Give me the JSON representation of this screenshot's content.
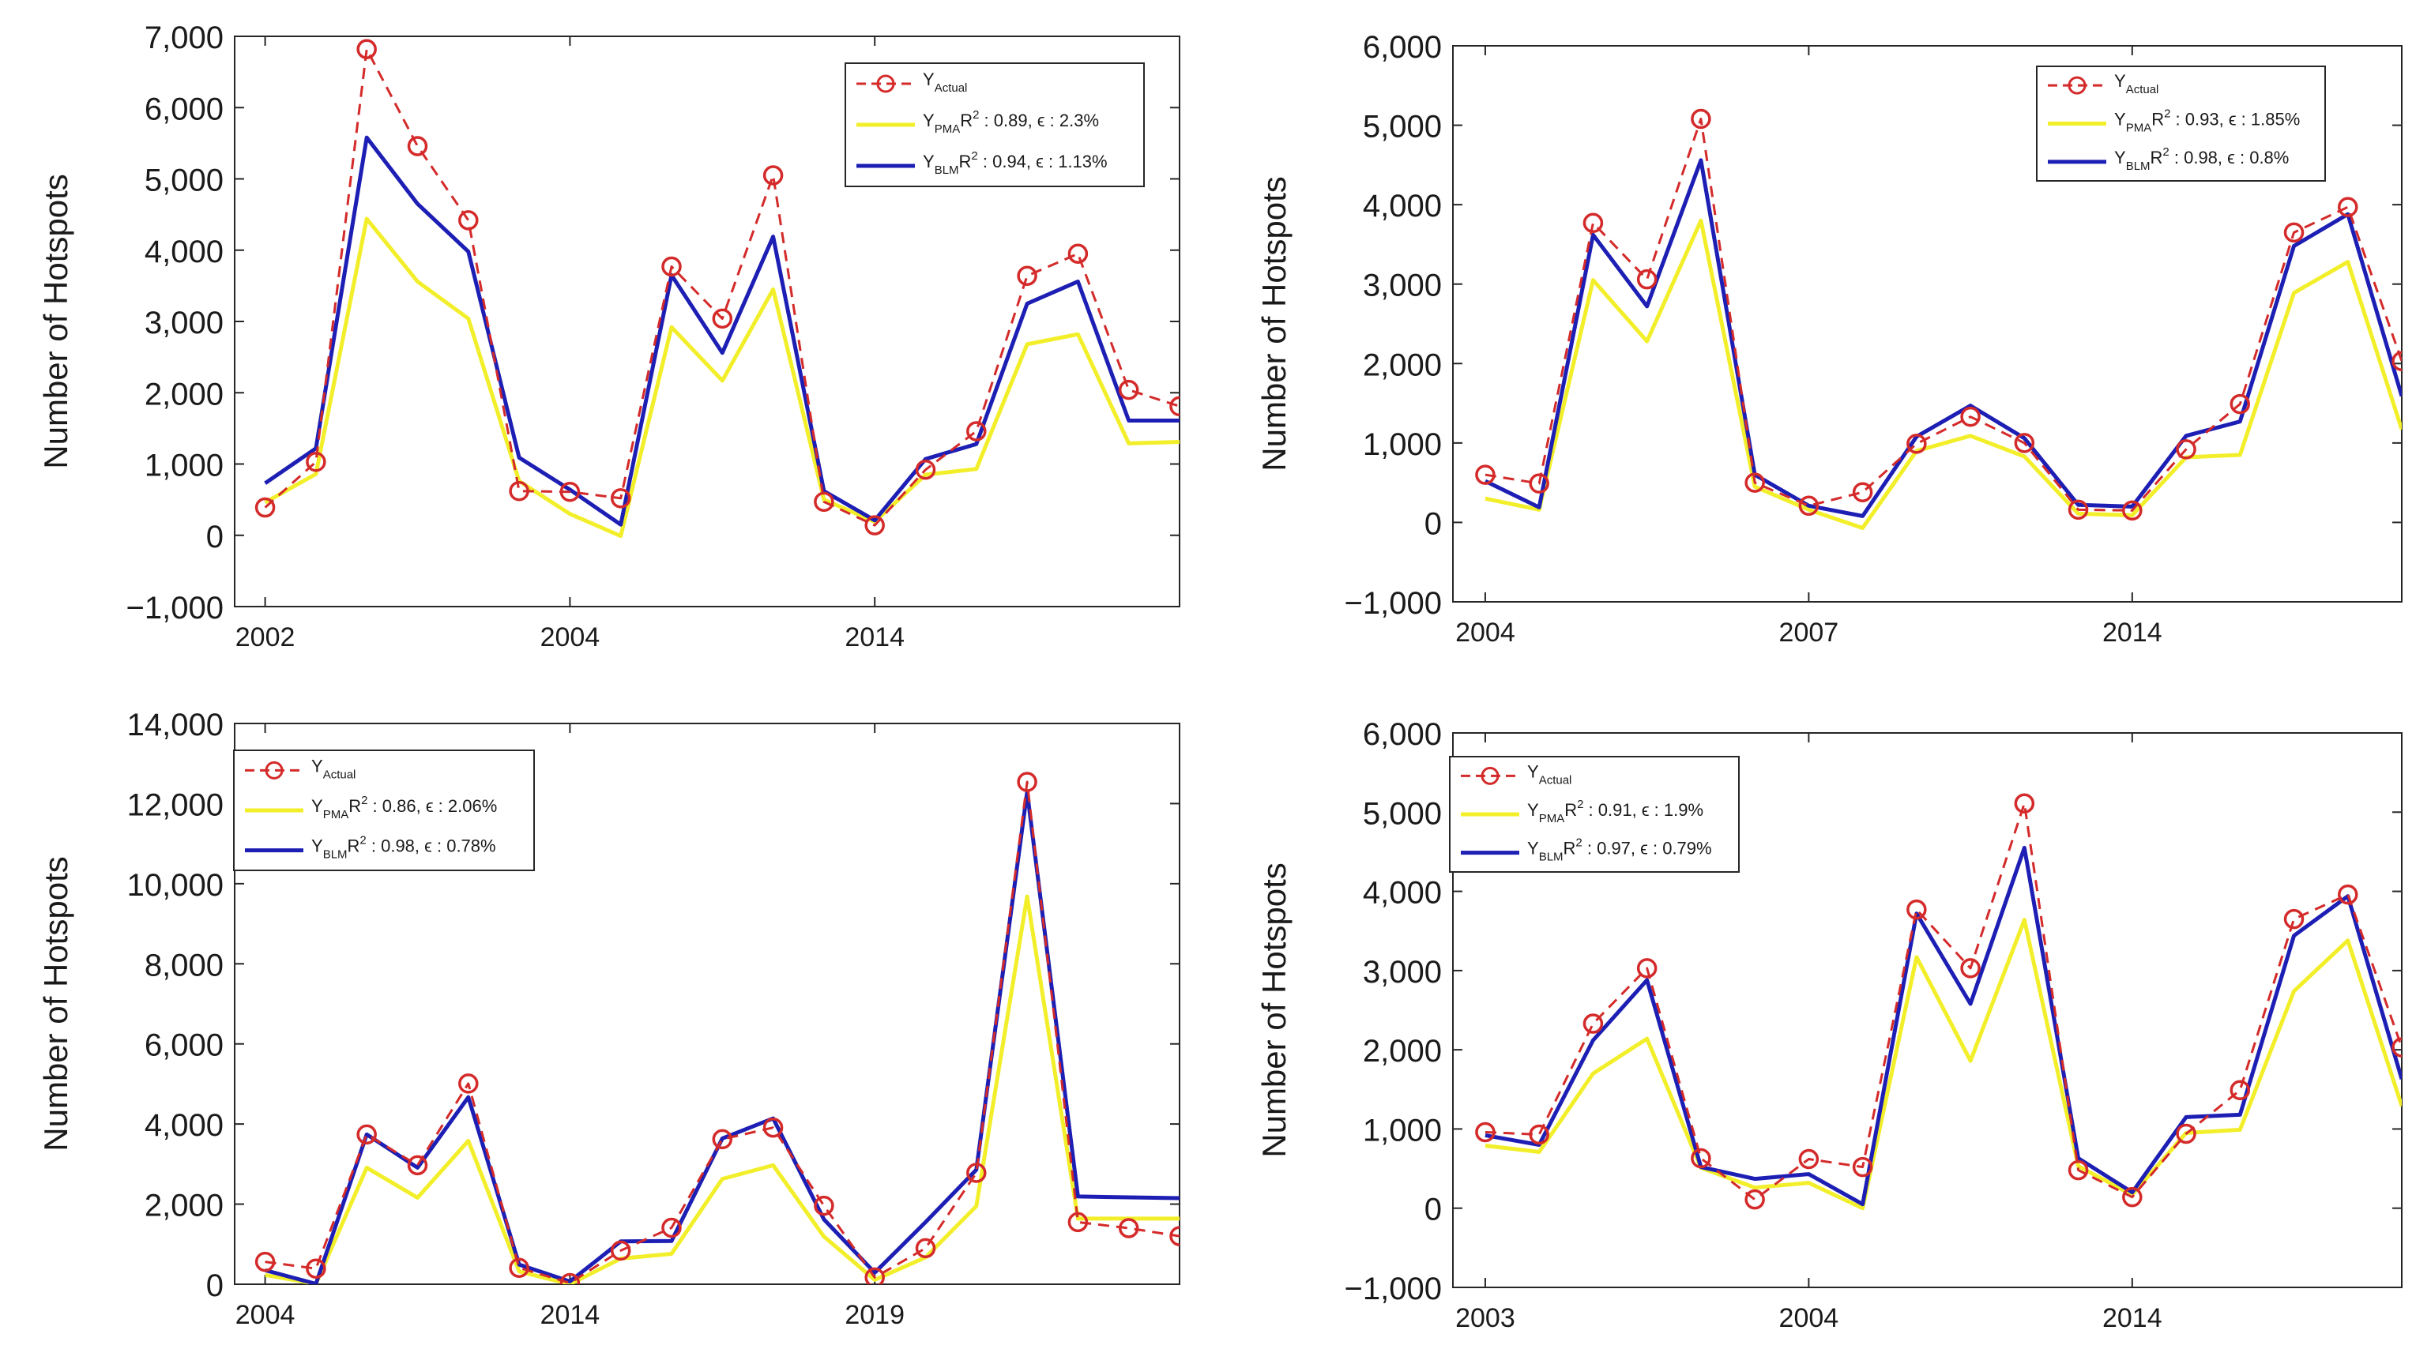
{
  "figure": {
    "background": "#ffffff"
  },
  "chart_data": [
    {
      "type": "line",
      "ylabel": "Number of Hotspots",
      "xlabel": "",
      "ylim": [
        -1000,
        7000
      ],
      "yticks": [
        -1000,
        0,
        1000,
        2000,
        3000,
        4000,
        5000,
        6000,
        7000
      ],
      "ytick_labels": [
        "−1,000",
        "0",
        "1,000",
        "2,000",
        "3,000",
        "4,000",
        "5,000",
        "6,000",
        "7,000"
      ],
      "x": [
        0,
        1,
        2,
        3,
        4,
        5,
        6,
        7,
        8,
        9,
        10,
        11,
        12,
        13,
        14,
        15,
        16,
        17,
        18
      ],
      "xlim": [
        -0.6,
        18
      ],
      "xticks": [
        0,
        6,
        12
      ],
      "xtick_labels": [
        "2002",
        "2004",
        "2014"
      ],
      "legend_position": "top-right",
      "series": [
        {
          "name": "Actual",
          "label_main": "Y",
          "label_sub": "Actual",
          "stats": "",
          "color": "#d42a2a",
          "style": "dashed-circle",
          "values": [
            390,
            1030,
            6820,
            5460,
            4420,
            620,
            610,
            520,
            3770,
            3040,
            5050,
            470,
            140,
            920,
            1460,
            3640,
            3950,
            2040,
            1810
          ]
        },
        {
          "name": "PMA",
          "label_main": "Y",
          "label_sub": "PMA",
          "stats_prefix": "R",
          "stats_sup": "2",
          "stats": " : 0.89, ϵ : 2.3%",
          "color": "#f2ef2a",
          "style": "solid",
          "values": [
            460,
            860,
            4440,
            3560,
            3040,
            760,
            300,
            -10,
            2920,
            2170,
            3450,
            500,
            190,
            850,
            930,
            2680,
            2820,
            1290,
            1310
          ]
        },
        {
          "name": "BLM",
          "label_main": "Y",
          "label_sub": "BLM",
          "stats_prefix": "R",
          "stats_sup": "2",
          "stats": " : 0.94, ϵ : 1.13%",
          "color": "#1d1fb4",
          "style": "solid",
          "values": [
            730,
            1220,
            5580,
            4650,
            3980,
            1090,
            640,
            150,
            3650,
            2560,
            4190,
            620,
            210,
            1070,
            1280,
            3250,
            3560,
            1610,
            1610
          ]
        }
      ]
    },
    {
      "type": "line",
      "ylabel": "Number of Hotspots",
      "xlabel": "",
      "ylim": [
        -1000,
        6000
      ],
      "yticks": [
        -1000,
        0,
        1000,
        2000,
        3000,
        4000,
        5000,
        6000
      ],
      "ytick_labels": [
        "−1,000",
        "0",
        "1,000",
        "2,000",
        "3,000",
        "4,000",
        "5,000",
        "6,000"
      ],
      "x": [
        0,
        1,
        2,
        3,
        4,
        5,
        6,
        7,
        8,
        9,
        10,
        11,
        12,
        13,
        14,
        15,
        16,
        17
      ],
      "xlim": [
        -0.6,
        17
      ],
      "xticks": [
        0,
        6,
        12
      ],
      "xtick_labels": [
        "2004",
        "2007",
        "2014"
      ],
      "legend_position": "top-right",
      "series": [
        {
          "name": "Actual",
          "label_main": "Y",
          "label_sub": "Actual",
          "stats": "",
          "color": "#d42a2a",
          "style": "dashed-circle",
          "values": [
            600,
            490,
            3770,
            3060,
            5080,
            500,
            210,
            380,
            990,
            1330,
            1000,
            160,
            150,
            920,
            1490,
            3650,
            3970,
            2030
          ]
        },
        {
          "name": "PMA",
          "label_main": "Y",
          "label_sub": "PMA",
          "stats_prefix": "R",
          "stats_sup": "2",
          "stats": " : 0.93, ϵ : 1.85%",
          "color": "#f2ef2a",
          "style": "solid",
          "values": [
            300,
            160,
            3050,
            2280,
            3800,
            450,
            160,
            -70,
            900,
            1090,
            830,
            110,
            90,
            820,
            850,
            2890,
            3280,
            1170
          ]
        },
        {
          "name": "BLM",
          "label_main": "Y",
          "label_sub": "BLM",
          "stats_prefix": "R",
          "stats_sup": "2",
          "stats": " : 0.98, ϵ : 0.8%",
          "color": "#1d1fb4",
          "style": "solid",
          "values": [
            520,
            190,
            3620,
            2720,
            4560,
            600,
            210,
            80,
            1080,
            1470,
            1060,
            220,
            200,
            1090,
            1270,
            3480,
            3880,
            1590
          ]
        }
      ]
    },
    {
      "type": "line",
      "ylabel": "Number of Hotspots",
      "xlabel": "",
      "ylim": [
        0,
        14000
      ],
      "yticks": [
        0,
        2000,
        4000,
        6000,
        8000,
        10000,
        12000,
        14000
      ],
      "ytick_labels": [
        "0",
        "2,000",
        "4,000",
        "6,000",
        "8,000",
        "10,000",
        "12,000",
        "14,000"
      ],
      "x": [
        0,
        1,
        2,
        3,
        4,
        5,
        6,
        7,
        8,
        9,
        10,
        11,
        12,
        13,
        14,
        15,
        16,
        17,
        18
      ],
      "xlim": [
        -0.6,
        18
      ],
      "xticks": [
        0,
        6,
        12
      ],
      "xtick_labels": [
        "2004",
        "2014",
        "2019"
      ],
      "legend_position": "top-left",
      "series": [
        {
          "name": "Actual",
          "label_main": "Y",
          "label_sub": "Actual",
          "stats": "",
          "color": "#d42a2a",
          "style": "dashed-circle",
          "values": [
            560,
            390,
            3740,
            2970,
            5010,
            410,
            30,
            840,
            1410,
            3620,
            3910,
            1960,
            170,
            900,
            2780,
            12540,
            1550,
            1400,
            1200
          ]
        },
        {
          "name": "PMA",
          "label_main": "Y",
          "label_sub": "PMA",
          "stats_prefix": "R",
          "stats_sup": "2",
          "stats": " : 0.86, ϵ : 2.06%",
          "color": "#f2ef2a",
          "style": "solid",
          "values": [
            230,
            10,
            2910,
            2160,
            3580,
            320,
            0,
            640,
            760,
            2630,
            2970,
            1190,
            110,
            670,
            1950,
            9680,
            1640,
            1640,
            1640
          ]
        },
        {
          "name": "BLM",
          "label_main": "Y",
          "label_sub": "BLM",
          "stats_prefix": "R",
          "stats_sup": "2",
          "stats": " : 0.98, ϵ : 0.78%",
          "color": "#1d1fb4",
          "style": "solid",
          "values": [
            350,
            10,
            3740,
            2910,
            4670,
            490,
            70,
            1070,
            1080,
            3640,
            4140,
            1620,
            290,
            1550,
            2860,
            12290,
            2190,
            2170,
            2150
          ]
        }
      ]
    },
    {
      "type": "line",
      "ylabel": "Number of Hotspots",
      "xlabel": "",
      "ylim": [
        -1000,
        6000
      ],
      "yticks": [
        -1000,
        0,
        1000,
        2000,
        3000,
        4000,
        5000,
        6000
      ],
      "ytick_labels": [
        "−1,000",
        "0",
        "1,000",
        "2,000",
        "3,000",
        "4,000",
        "5,000",
        "6,000"
      ],
      "x": [
        0,
        1,
        2,
        3,
        4,
        5,
        6,
        7,
        8,
        9,
        10,
        11,
        12,
        13,
        14,
        15,
        16,
        17
      ],
      "xlim": [
        -0.6,
        17
      ],
      "xticks": [
        0,
        6,
        12
      ],
      "xtick_labels": [
        "2003",
        "2004",
        "2014"
      ],
      "legend_position": "top-left",
      "series": [
        {
          "name": "Actual",
          "label_main": "Y",
          "label_sub": "Actual",
          "stats": "",
          "color": "#d42a2a",
          "style": "dashed-circle",
          "values": [
            960,
            930,
            2330,
            3030,
            630,
            110,
            620,
            520,
            3770,
            3030,
            5110,
            480,
            140,
            940,
            1490,
            3650,
            3960,
            2030
          ]
        },
        {
          "name": "PMA",
          "label_main": "Y",
          "label_sub": "PMA",
          "stats_prefix": "R",
          "stats_sup": "2",
          "stats": " : 0.91, ϵ : 1.9%",
          "color": "#f2ef2a",
          "style": "solid",
          "values": [
            790,
            710,
            1700,
            2140,
            510,
            260,
            320,
            0,
            3170,
            1860,
            3640,
            530,
            170,
            950,
            990,
            2740,
            3380,
            1290
          ]
        },
        {
          "name": "BLM",
          "label_main": "Y",
          "label_sub": "BLM",
          "stats_prefix": "R",
          "stats_sup": "2",
          "stats": " : 0.97, ϵ : 0.79%",
          "color": "#1d1fb4",
          "style": "solid",
          "values": [
            920,
            800,
            2120,
            2880,
            520,
            370,
            430,
            50,
            3720,
            2580,
            4550,
            630,
            200,
            1150,
            1180,
            3440,
            3940,
            1630
          ]
        }
      ]
    }
  ]
}
